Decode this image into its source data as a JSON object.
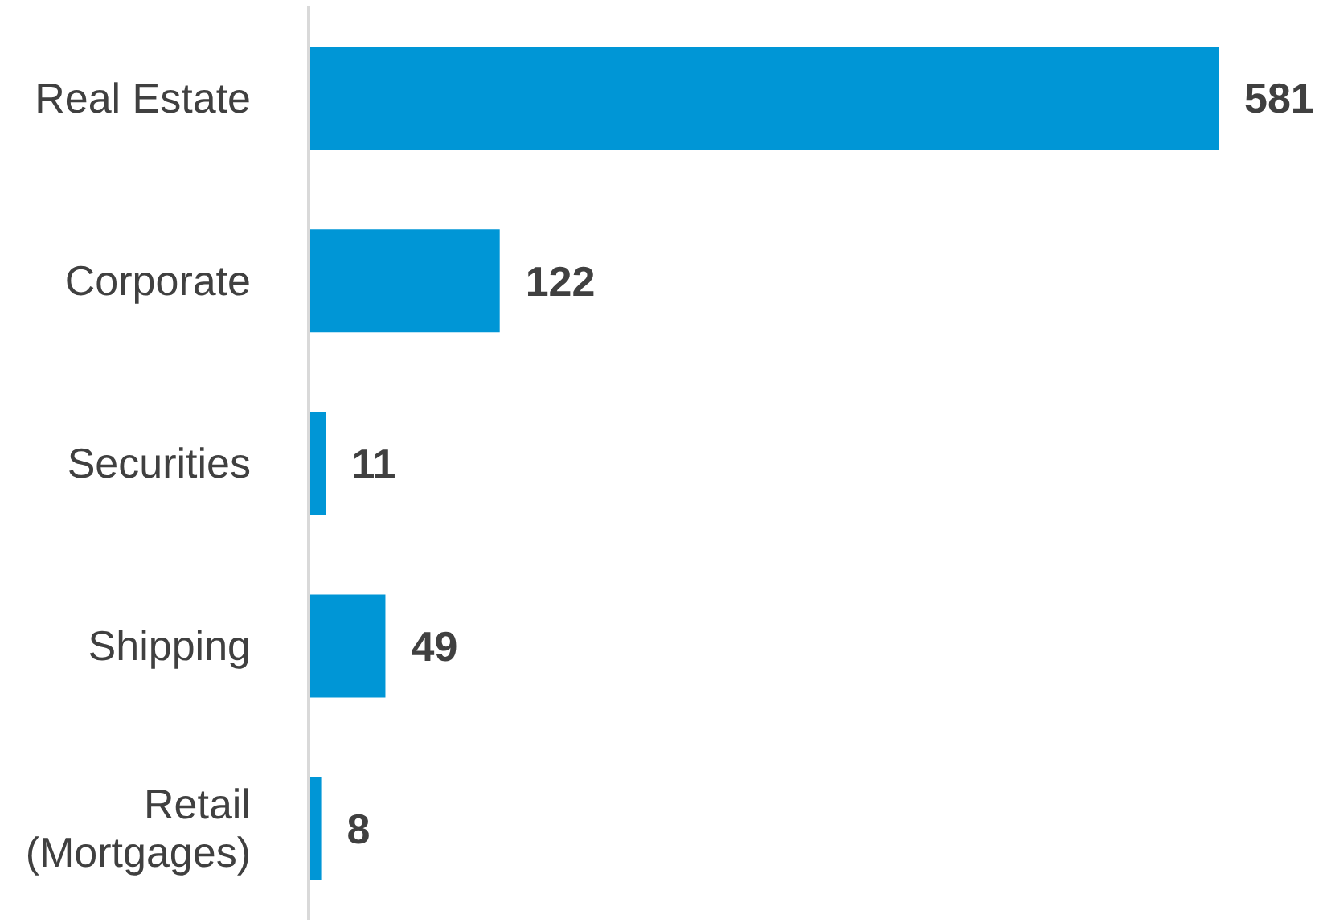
{
  "chart_data": {
    "type": "bar",
    "orientation": "horizontal",
    "categories": [
      "Real Estate",
      "Corporate",
      "Securities",
      "Shipping",
      "Retail (Mortgages)"
    ],
    "values": [
      581,
      122,
      11,
      49,
      8
    ],
    "color": "#0096d6",
    "data_labels": true,
    "grid": false,
    "legend": false
  }
}
